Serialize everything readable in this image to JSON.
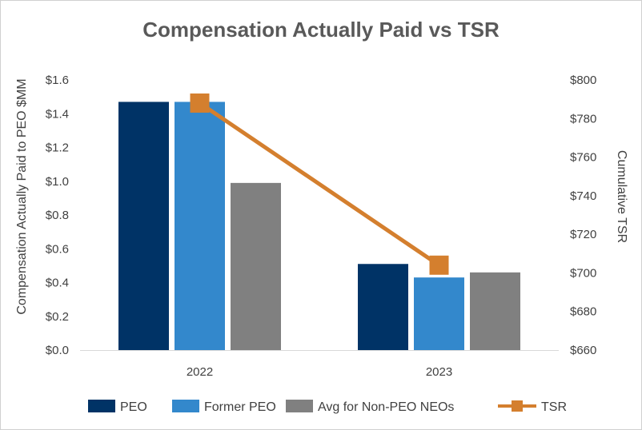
{
  "chart_data": {
    "type": "bar",
    "title": "Compensation Actually Paid vs TSR",
    "categories": [
      "2022",
      "2023"
    ],
    "ylabel": "Compensation Actually Paid to PEO $MM",
    "y2label": "Cumulative TSR",
    "ylim": [
      0,
      1.6
    ],
    "y2lim": [
      660,
      800
    ],
    "yticks": [
      "$0.0",
      "$0.2",
      "$0.4",
      "$0.6",
      "$0.8",
      "$1.0",
      "$1.2",
      "$1.4",
      "$1.6"
    ],
    "y2ticks": [
      "$660",
      "$680",
      "$700",
      "$720",
      "$740",
      "$760",
      "$780",
      "$800"
    ],
    "series": [
      {
        "name": "PEO",
        "type": "bar",
        "axis": "left",
        "color": "#003366",
        "values": [
          1.47,
          0.51
        ]
      },
      {
        "name": "Former PEO",
        "type": "bar",
        "axis": "left",
        "color": "#3388CC",
        "values": [
          1.47,
          0.43
        ]
      },
      {
        "name": "Avg for Non-PEO NEOs",
        "type": "bar",
        "axis": "left",
        "color": "#808080",
        "values": [
          0.99,
          0.46
        ]
      },
      {
        "name": "TSR",
        "type": "line",
        "axis": "right",
        "color": "#D47F2E",
        "values": [
          788,
          704
        ]
      }
    ],
    "grid": false,
    "legend": "bottom"
  }
}
